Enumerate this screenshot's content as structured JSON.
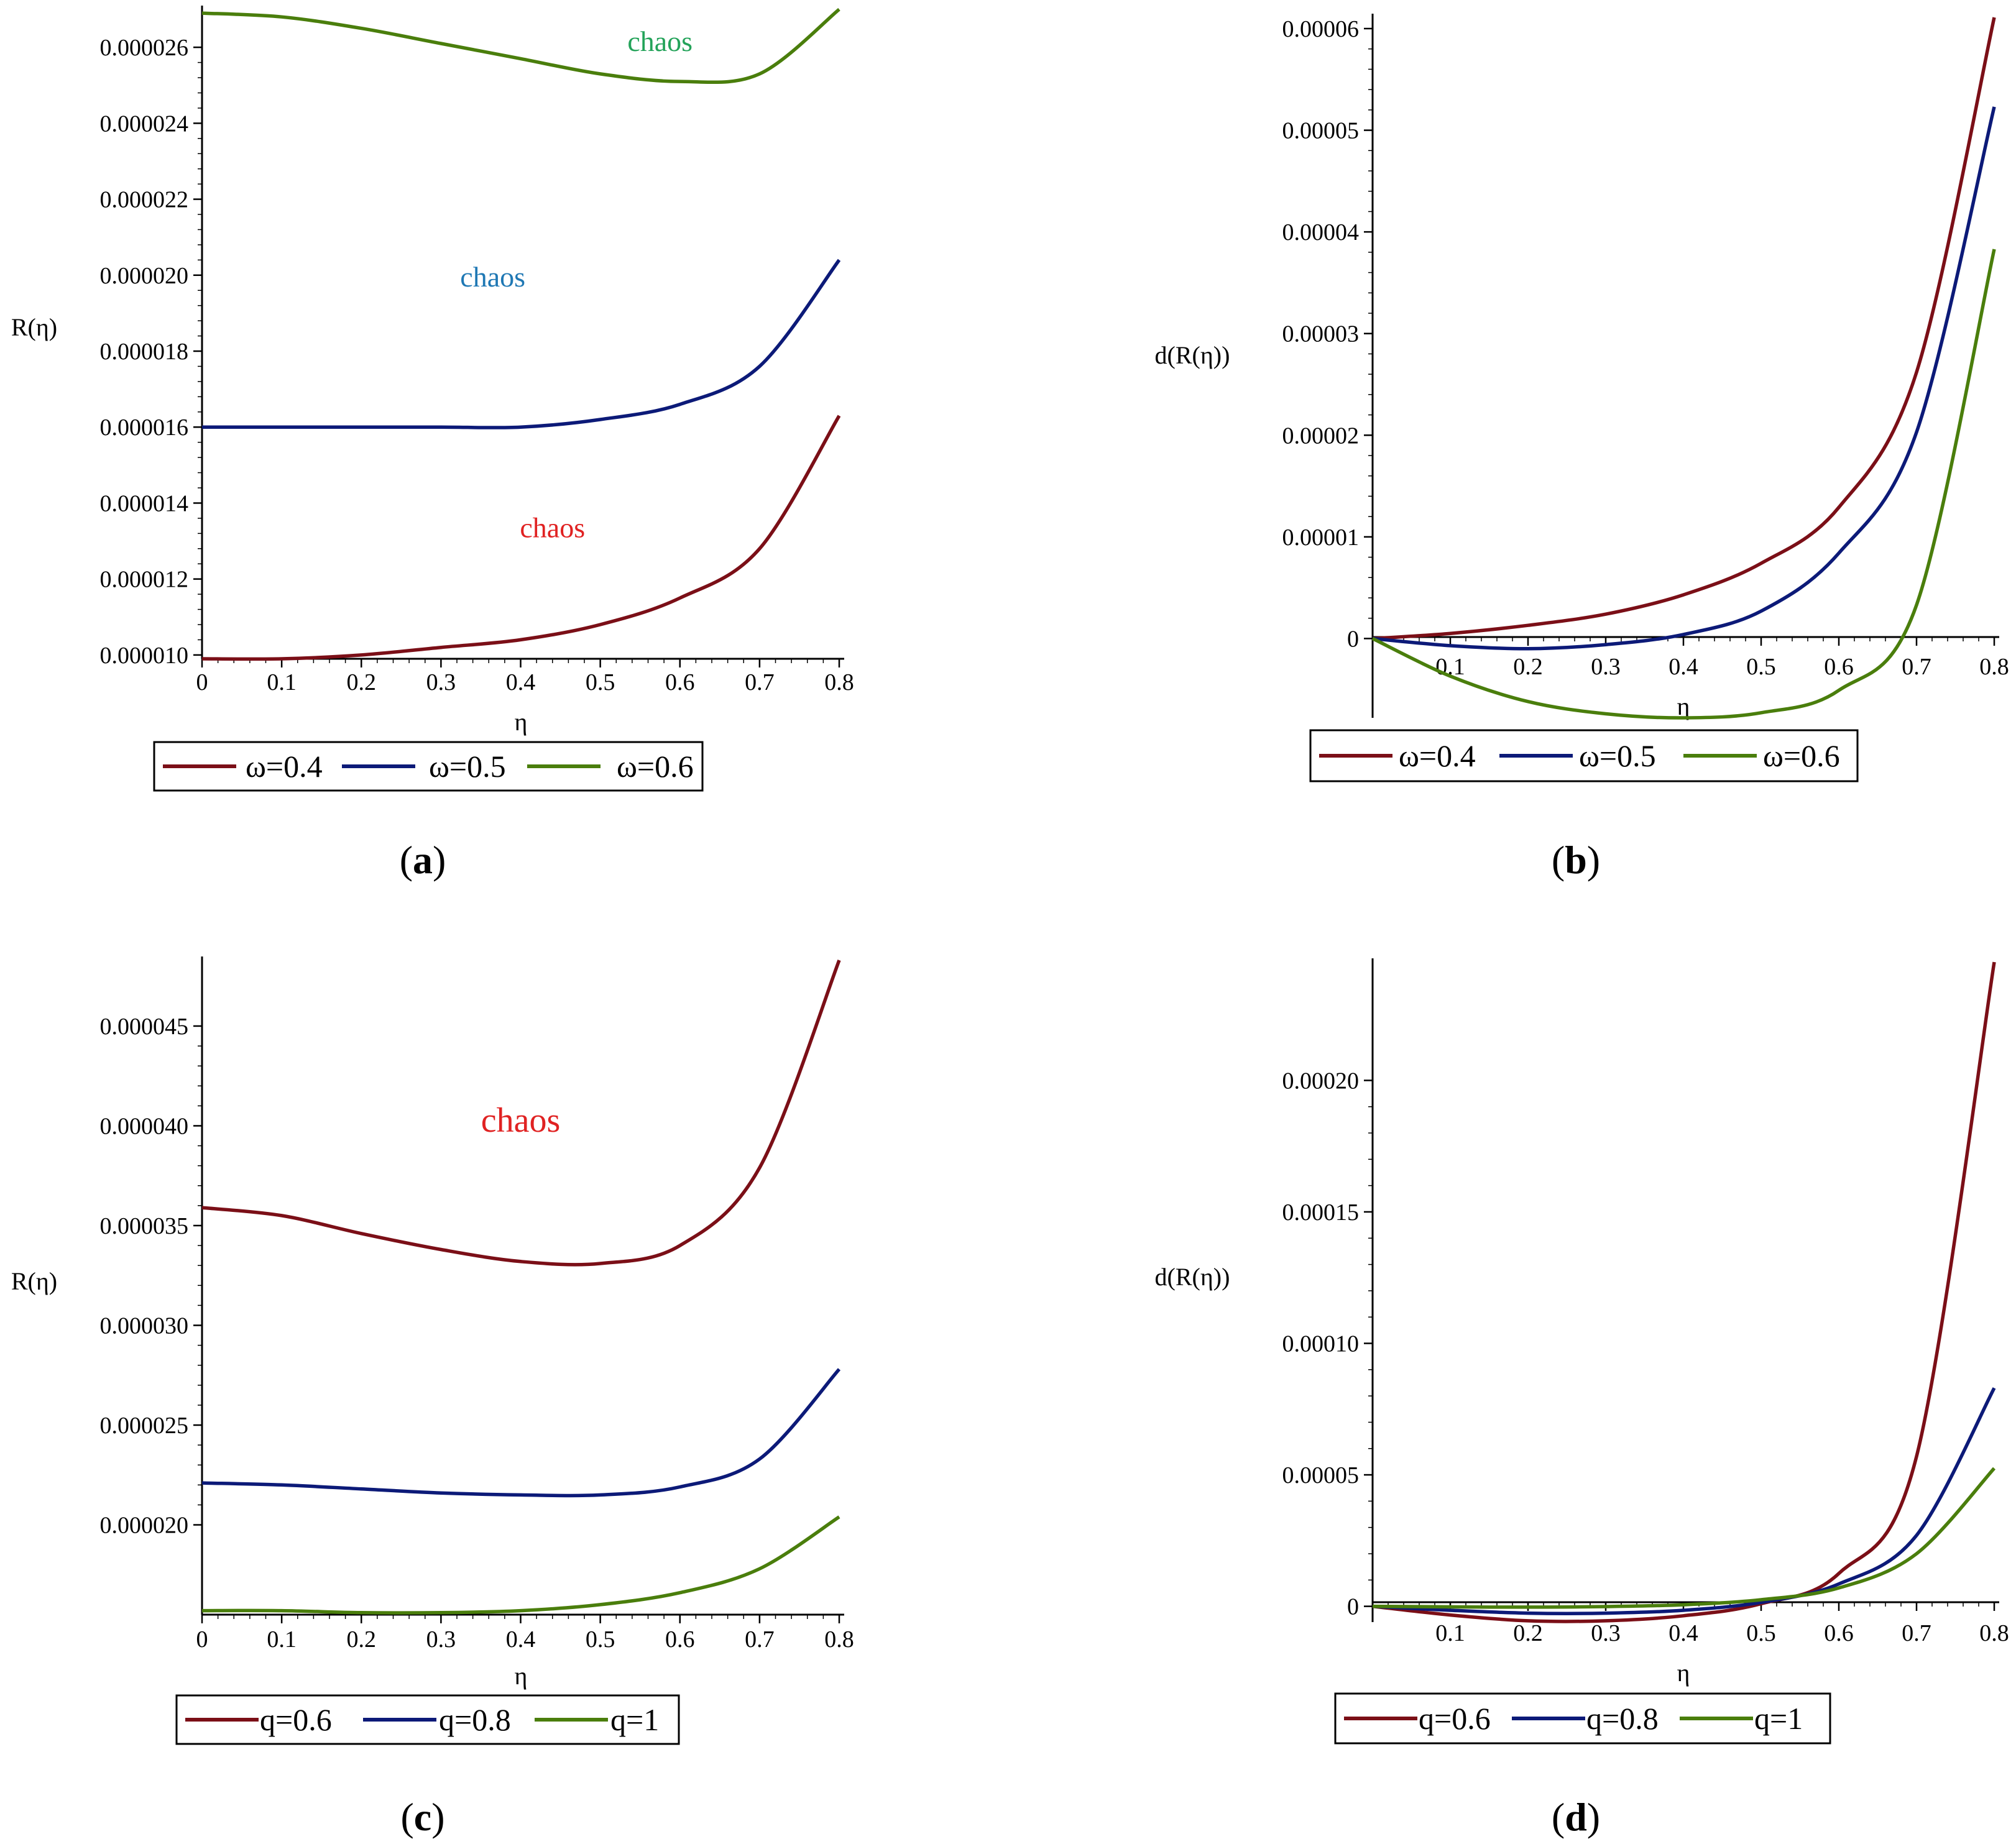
{
  "chart_data": [
    {
      "id": "a",
      "type": "line",
      "caption": "a",
      "xlabel": "η",
      "ylabel": "R(η)",
      "xlim": [
        0,
        0.8
      ],
      "ylim": [
        9.9e-06,
        2.7e-05
      ],
      "x_ticks": [
        0,
        0.1,
        0.2,
        0.3,
        0.4,
        0.5,
        0.6,
        0.7,
        0.8
      ],
      "x_tick_labels": [
        "0",
        "0.1",
        "0.2",
        "0.3",
        "0.4",
        "0.5",
        "0.6",
        "0.7",
        "0.8"
      ],
      "y_ticks": [
        1e-05,
        1.2e-05,
        1.4e-05,
        1.6e-05,
        1.8e-05,
        2e-05,
        2.2e-05,
        2.4e-05,
        2.6e-05
      ],
      "y_tick_labels": [
        "0.000010",
        "0.000012",
        "0.000014",
        "0.000016",
        "0.000018",
        "0.000020",
        "0.000022",
        "0.000024",
        "0.000026"
      ],
      "grid": false,
      "legend_position": "bottom",
      "series": [
        {
          "name": "ω=0.4",
          "color": "#7b0f17",
          "x": [
            0,
            0.1,
            0.2,
            0.3,
            0.4,
            0.5,
            0.6,
            0.7,
            0.8
          ],
          "y": [
            9.9e-06,
            9.9e-06,
            1e-05,
            1.02e-05,
            1.04e-05,
            1.08e-05,
            1.15e-05,
            1.28e-05,
            1.63e-05
          ]
        },
        {
          "name": "ω=0.5",
          "color": "#0c1a78",
          "x": [
            0,
            0.1,
            0.2,
            0.3,
            0.4,
            0.5,
            0.6,
            0.7,
            0.8
          ],
          "y": [
            1.6e-05,
            1.6e-05,
            1.6e-05,
            1.6e-05,
            1.6e-05,
            1.62e-05,
            1.66e-05,
            1.76e-05,
            2.04e-05
          ]
        },
        {
          "name": "ω=0.6",
          "color": "#4a7e0c",
          "x": [
            0,
            0.1,
            0.2,
            0.3,
            0.4,
            0.5,
            0.6,
            0.7,
            0.8
          ],
          "y": [
            2.69e-05,
            2.68e-05,
            2.65e-05,
            2.61e-05,
            2.57e-05,
            2.53e-05,
            2.51e-05,
            2.53e-05,
            2.7e-05
          ]
        }
      ],
      "annotations": [
        {
          "text": "chaos",
          "x": 0.575,
          "y": 2.59e-05,
          "color": "#24a35a"
        },
        {
          "text": "chaos",
          "x": 0.365,
          "y": 1.97e-05,
          "color": "#1f78b4"
        },
        {
          "text": "chaos",
          "x": 0.44,
          "y": 1.31e-05,
          "color": "#e02222"
        }
      ]
    },
    {
      "id": "b",
      "type": "line",
      "caption": "b",
      "xlabel": "η",
      "ylabel": "d(R(η))",
      "xlim": [
        0,
        0.8
      ],
      "ylim": [
        -7.8e-06,
        6.11e-05
      ],
      "x_ticks": [
        0.1,
        0.2,
        0.3,
        0.4,
        0.5,
        0.6,
        0.7,
        0.8
      ],
      "x_tick_labels": [
        "0.1",
        "0.2",
        "0.3",
        "0.4",
        "0.5",
        "0.6",
        "0.7",
        "0.8"
      ],
      "y_ticks": [
        0,
        1e-05,
        2e-05,
        3e-05,
        4e-05,
        5e-05,
        6e-05
      ],
      "y_tick_labels": [
        "0",
        "0.00001",
        "0.00002",
        "0.00003",
        "0.00004",
        "0.00005",
        "0.00006"
      ],
      "grid": false,
      "legend_position": "bottom",
      "series": [
        {
          "name": "ω=0.4",
          "color": "#7b0f17",
          "x": [
            0,
            0.1,
            0.2,
            0.3,
            0.4,
            0.5,
            0.6,
            0.7,
            0.8
          ],
          "y": [
            0,
            5e-07,
            1.3e-06,
            2.4e-06,
            4.3e-06,
            7.4e-06,
            1.29e-05,
            2.62e-05,
            6.11e-05
          ]
        },
        {
          "name": "ω=0.5",
          "color": "#0c1a78",
          "x": [
            0,
            0.1,
            0.2,
            0.3,
            0.4,
            0.5,
            0.6,
            0.7,
            0.8
          ],
          "y": [
            0,
            -7e-07,
            -1e-06,
            -6e-07,
            4e-07,
            2.7e-06,
            8.4e-06,
            2.03e-05,
            5.23e-05
          ]
        },
        {
          "name": "ω=0.6",
          "color": "#4a7e0c",
          "x": [
            0,
            0.1,
            0.2,
            0.3,
            0.4,
            0.5,
            0.6,
            0.7,
            0.8
          ],
          "y": [
            0,
            -3.7e-06,
            -6.2e-06,
            -7.4e-06,
            -7.8e-06,
            -7.3e-06,
            -5.1e-06,
            3.3e-06,
            3.83e-05
          ]
        }
      ]
    },
    {
      "id": "c",
      "type": "line",
      "caption": "c",
      "xlabel": "η",
      "ylabel": "R(η)",
      "xlim": [
        0,
        0.8
      ],
      "ylim": [
        1.55e-05,
        4.83e-05
      ],
      "x_ticks": [
        0,
        0.1,
        0.2,
        0.3,
        0.4,
        0.5,
        0.6,
        0.7,
        0.8
      ],
      "x_tick_labels": [
        "0",
        "0.1",
        "0.2",
        "0.3",
        "0.4",
        "0.5",
        "0.6",
        "0.7",
        "0.8"
      ],
      "y_ticks": [
        2e-05,
        2.5e-05,
        3e-05,
        3.5e-05,
        4e-05,
        4.5e-05
      ],
      "y_tick_labels": [
        "0.000020",
        "0.000025",
        "0.000030",
        "0.000035",
        "0.000040",
        "0.000045"
      ],
      "grid": false,
      "legend_position": "bottom",
      "series": [
        {
          "name": "q=0.6",
          "color": "#7b0f17",
          "x": [
            0,
            0.1,
            0.2,
            0.3,
            0.4,
            0.5,
            0.6,
            0.7,
            0.8
          ],
          "y": [
            3.59e-05,
            3.55e-05,
            3.46e-05,
            3.38e-05,
            3.32e-05,
            3.31e-05,
            3.4e-05,
            3.79e-05,
            4.83e-05
          ]
        },
        {
          "name": "q=0.8",
          "color": "#0c1a78",
          "x": [
            0,
            0.1,
            0.2,
            0.3,
            0.4,
            0.5,
            0.6,
            0.7,
            0.8
          ],
          "y": [
            2.21e-05,
            2.2e-05,
            2.18e-05,
            2.16e-05,
            2.15e-05,
            2.15e-05,
            2.19e-05,
            2.33e-05,
            2.78e-05
          ]
        },
        {
          "name": "q=1",
          "color": "#4a7e0c",
          "x": [
            0,
            0.1,
            0.2,
            0.3,
            0.4,
            0.5,
            0.6,
            0.7,
            0.8
          ],
          "y": [
            1.57e-05,
            1.57e-05,
            1.56e-05,
            1.56e-05,
            1.57e-05,
            1.6e-05,
            1.66e-05,
            1.78e-05,
            2.04e-05
          ]
        }
      ],
      "annotations": [
        {
          "text": "chaos",
          "x": 0.4,
          "y": 3.97e-05,
          "color": "#e02222"
        }
      ]
    },
    {
      "id": "d",
      "type": "line",
      "caption": "d",
      "xlabel": "η",
      "ylabel": "d(R(η))",
      "xlim": [
        0,
        0.8
      ],
      "ylim": [
        -6e-06,
        0.000245
      ],
      "x_ticks": [
        0.1,
        0.2,
        0.3,
        0.4,
        0.5,
        0.6,
        0.7,
        0.8
      ],
      "x_tick_labels": [
        "0.1",
        "0.2",
        "0.3",
        "0.4",
        "0.5",
        "0.6",
        "0.7",
        "0.8"
      ],
      "y_ticks": [
        0,
        5e-05,
        0.0001,
        0.00015,
        0.0002
      ],
      "y_tick_labels": [
        "0",
        "0.00005",
        "0.00010",
        "0.00015",
        "0.00020"
      ],
      "grid": false,
      "legend_position": "bottom",
      "series": [
        {
          "name": "q=0.6",
          "color": "#7b0f17",
          "x": [
            0,
            0.1,
            0.2,
            0.3,
            0.4,
            0.5,
            0.6,
            0.7,
            0.8
          ],
          "y": [
            0,
            -3.3e-06,
            -5.5e-06,
            -5.5e-06,
            -3.6e-06,
            1e-06,
            1.25e-05,
            5.7e-05,
            0.000245
          ]
        },
        {
          "name": "q=0.8",
          "color": "#0c1a78",
          "x": [
            0,
            0.1,
            0.2,
            0.3,
            0.4,
            0.5,
            0.6,
            0.7,
            0.8
          ],
          "y": [
            0,
            -1.5e-06,
            -2.6e-06,
            -2.6e-06,
            -1.5e-06,
            1.5e-06,
            8.5e-06,
            2.7e-05,
            8.3e-05
          ]
        },
        {
          "name": "q=1",
          "color": "#4a7e0c",
          "x": [
            0,
            0.1,
            0.2,
            0.3,
            0.4,
            0.5,
            0.6,
            0.7,
            0.8
          ],
          "y": [
            0,
            -2e-07,
            -3e-07,
            -1e-07,
            6e-07,
            2.5e-06,
            7e-06,
            2e-05,
            5.25e-05
          ]
        }
      ]
    }
  ]
}
